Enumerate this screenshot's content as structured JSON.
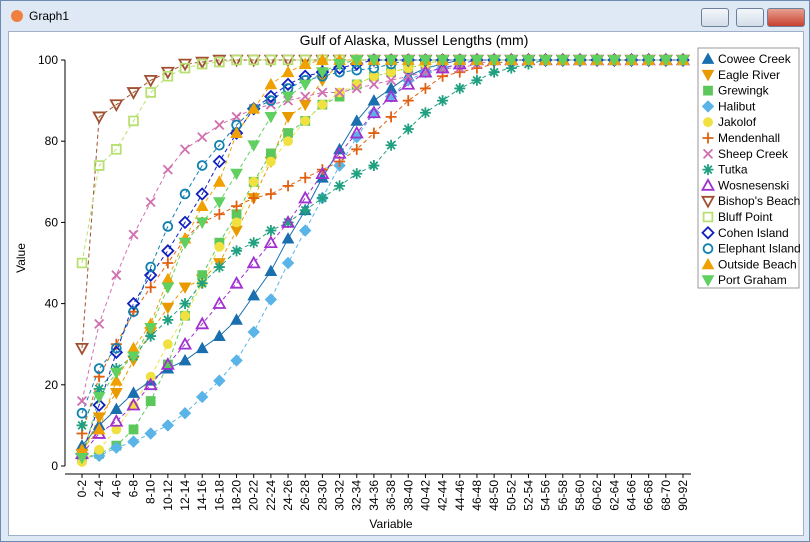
{
  "window_title": "Graph1",
  "chart_data": {
    "type": "line",
    "title": "Gulf of Alaska, Mussel Lengths (mm)",
    "xlabel": "Variable",
    "ylabel": "Value",
    "categories": [
      "0-2",
      "2-4",
      "4-6",
      "6-8",
      "8-10",
      "10-12",
      "12-14",
      "14-16",
      "16-18",
      "18-20",
      "20-22",
      "22-24",
      "24-26",
      "26-28",
      "28-30",
      "30-32",
      "32-34",
      "34-36",
      "36-38",
      "38-40",
      "40-42",
      "42-44",
      "44-46",
      "46-48",
      "48-50",
      "50-52",
      "52-54",
      "54-56",
      "56-58",
      "58-60",
      "60-62",
      "62-64",
      "64-66",
      "66-68",
      "68-70",
      "90-92"
    ],
    "ylim": [
      0,
      100
    ],
    "yticks": [
      0,
      20,
      40,
      60,
      80,
      100
    ],
    "grid": false,
    "legend": "right",
    "series": [
      {
        "name": "Cowee Creek",
        "color": "#1a6faf",
        "marker": "triangle",
        "filled": true,
        "line_style": "solid",
        "values": [
          5,
          10,
          14,
          18,
          21,
          24,
          26,
          29,
          32,
          36,
          42,
          48,
          56,
          63,
          71,
          78,
          85,
          90,
          93,
          96,
          98,
          99,
          100,
          100,
          100,
          100,
          100,
          100,
          100,
          100,
          100,
          100,
          100,
          100,
          100,
          100
        ]
      },
      {
        "name": "Eagle River",
        "color": "#e89a00",
        "marker": "triangle-down",
        "filled": true,
        "line_style": "dashed",
        "values": [
          3,
          12,
          18,
          26,
          33,
          39,
          44,
          46,
          50,
          58,
          66,
          75,
          86,
          89,
          95,
          99,
          100,
          100,
          100,
          100,
          100,
          100,
          100,
          100,
          100,
          100,
          100,
          100,
          100,
          100,
          100,
          100,
          100,
          100,
          100,
          100
        ]
      },
      {
        "name": "Grewingk",
        "color": "#5cc85c",
        "marker": "square",
        "filled": true,
        "line_style": "dashed",
        "values": [
          2,
          3,
          5,
          9,
          16,
          25,
          37,
          47,
          55,
          62,
          70,
          77,
          82,
          85,
          89,
          91,
          94,
          96,
          97,
          98,
          99,
          100,
          100,
          100,
          100,
          100,
          100,
          100,
          100,
          100,
          100,
          100,
          100,
          100,
          100,
          100
        ]
      },
      {
        "name": "Halibut",
        "color": "#5ab4e8",
        "marker": "diamond",
        "filled": true,
        "line_style": "dashed",
        "values": [
          2,
          2.5,
          4.5,
          6,
          8,
          10,
          13,
          17,
          21,
          26,
          33,
          41,
          50,
          58,
          66,
          74,
          81,
          87,
          91,
          95,
          97,
          98,
          99,
          100,
          100,
          100,
          100,
          100,
          100,
          100,
          100,
          100,
          100,
          100,
          100,
          100
        ]
      },
      {
        "name": "Jakolof",
        "color": "#f0e040",
        "marker": "circle",
        "filled": true,
        "line_style": "dashed",
        "values": [
          1,
          4,
          9,
          15,
          22,
          30,
          37,
          45,
          54,
          60,
          70,
          75,
          80,
          85,
          89,
          92,
          94,
          96,
          97,
          98,
          99,
          100,
          100,
          100,
          100,
          100,
          100,
          100,
          100,
          100,
          100,
          100,
          100,
          100,
          100,
          100
        ]
      },
      {
        "name": "Mendenhall",
        "color": "#e06010",
        "marker": "plus",
        "filled": false,
        "line_style": "dashed",
        "values": [
          8,
          22,
          30,
          38,
          44,
          50,
          56,
          60,
          62,
          64,
          66,
          67,
          69,
          71,
          73,
          75,
          78,
          82,
          86,
          90,
          93,
          96,
          97,
          98,
          99,
          100,
          100,
          100,
          100,
          100,
          100,
          100,
          100,
          100,
          100,
          100
        ]
      },
      {
        "name": "Sheep Creek",
        "color": "#d070b0",
        "marker": "x",
        "filled": false,
        "line_style": "dashed",
        "values": [
          16,
          35,
          47,
          57,
          65,
          73,
          78,
          81,
          84,
          86,
          88,
          89,
          90,
          91,
          92,
          92,
          93,
          94,
          95,
          96,
          97,
          98,
          98,
          99,
          100,
          100,
          100,
          100,
          100,
          100,
          100,
          100,
          100,
          100,
          100,
          100
        ]
      },
      {
        "name": "Tutka",
        "color": "#20a080",
        "marker": "star",
        "filled": false,
        "line_style": "dashed",
        "values": [
          10,
          19,
          24,
          27,
          32,
          36,
          40,
          45,
          49,
          53,
          55,
          58,
          60,
          63,
          66,
          69,
          72,
          74,
          79,
          83,
          87,
          90,
          93,
          95,
          97,
          98,
          99,
          100,
          100,
          100,
          100,
          100,
          100,
          100,
          100,
          100
        ]
      },
      {
        "name": "Wosnesenski",
        "color": "#a030d0",
        "marker": "triangle",
        "filled": false,
        "line_style": "dashed",
        "values": [
          3,
          8,
          11,
          15,
          20,
          25,
          30,
          35,
          40,
          45,
          50,
          55,
          60,
          66,
          72,
          77,
          82,
          87,
          91,
          94,
          97,
          98,
          99,
          100,
          100,
          100,
          100,
          100,
          100,
          100,
          100,
          100,
          100,
          100,
          100,
          100
        ]
      },
      {
        "name": "Bishop's Beach",
        "color": "#a05030",
        "marker": "triangle-down",
        "filled": false,
        "line_style": "dashed",
        "values": [
          29,
          86,
          89,
          92,
          95,
          97,
          99,
          99.5,
          100,
          100,
          100,
          100,
          100,
          100,
          100,
          100,
          100,
          100,
          100,
          100,
          100,
          100,
          100,
          100,
          100,
          100,
          100,
          100,
          100,
          100,
          100,
          100,
          100,
          100,
          100,
          100
        ]
      },
      {
        "name": "Bluff Point",
        "color": "#b8e070",
        "marker": "square",
        "filled": false,
        "line_style": "dashed",
        "values": [
          50,
          74,
          78,
          85,
          92,
          96,
          98,
          99,
          99.5,
          100,
          100,
          100,
          100,
          100,
          100,
          100,
          100,
          100,
          100,
          100,
          100,
          100,
          100,
          100,
          100,
          100,
          100,
          100,
          100,
          100,
          100,
          100,
          100,
          100,
          100,
          100
        ]
      },
      {
        "name": "Cohen Island",
        "color": "#1020c0",
        "marker": "diamond",
        "filled": false,
        "line_style": "dashed",
        "values": [
          3,
          15,
          28,
          40,
          47,
          53,
          60,
          67,
          75,
          82,
          88,
          91,
          94,
          96,
          97,
          98,
          99,
          100,
          100,
          100,
          100,
          100,
          100,
          100,
          100,
          100,
          100,
          100,
          100,
          100,
          100,
          100,
          100,
          100,
          100,
          100
        ]
      },
      {
        "name": "Elephant Island",
        "color": "#1080b0",
        "marker": "circle",
        "filled": false,
        "line_style": "dashed",
        "values": [
          13,
          24,
          29,
          38,
          49,
          59,
          67,
          74,
          79,
          84,
          88,
          90,
          93,
          95,
          96,
          97,
          97.5,
          98,
          99,
          100,
          100,
          100,
          100,
          100,
          100,
          100,
          100,
          100,
          100,
          100,
          100,
          100,
          100,
          100,
          100,
          100
        ]
      },
      {
        "name": "Outside Beach",
        "color": "#f0a000",
        "marker": "triangle",
        "filled": true,
        "line_style": "dashed",
        "values": [
          4,
          9,
          21,
          29,
          35,
          46,
          56,
          64,
          70,
          82,
          88,
          94,
          97,
          99,
          100,
          100,
          100,
          100,
          100,
          100,
          100,
          100,
          100,
          100,
          100,
          100,
          100,
          100,
          100,
          100,
          100,
          100,
          100,
          100,
          100,
          100
        ]
      },
      {
        "name": "Port Graham",
        "color": "#60d060",
        "marker": "triangle-down",
        "filled": true,
        "line_style": "dashed",
        "values": [
          2,
          17,
          23,
          27,
          34,
          44,
          55,
          60,
          65,
          72,
          79,
          86,
          91,
          94,
          97,
          99,
          100,
          100,
          100,
          100,
          100,
          100,
          100,
          100,
          100,
          100,
          100,
          100,
          100,
          100,
          100,
          100,
          100,
          100,
          100,
          100
        ]
      }
    ]
  }
}
